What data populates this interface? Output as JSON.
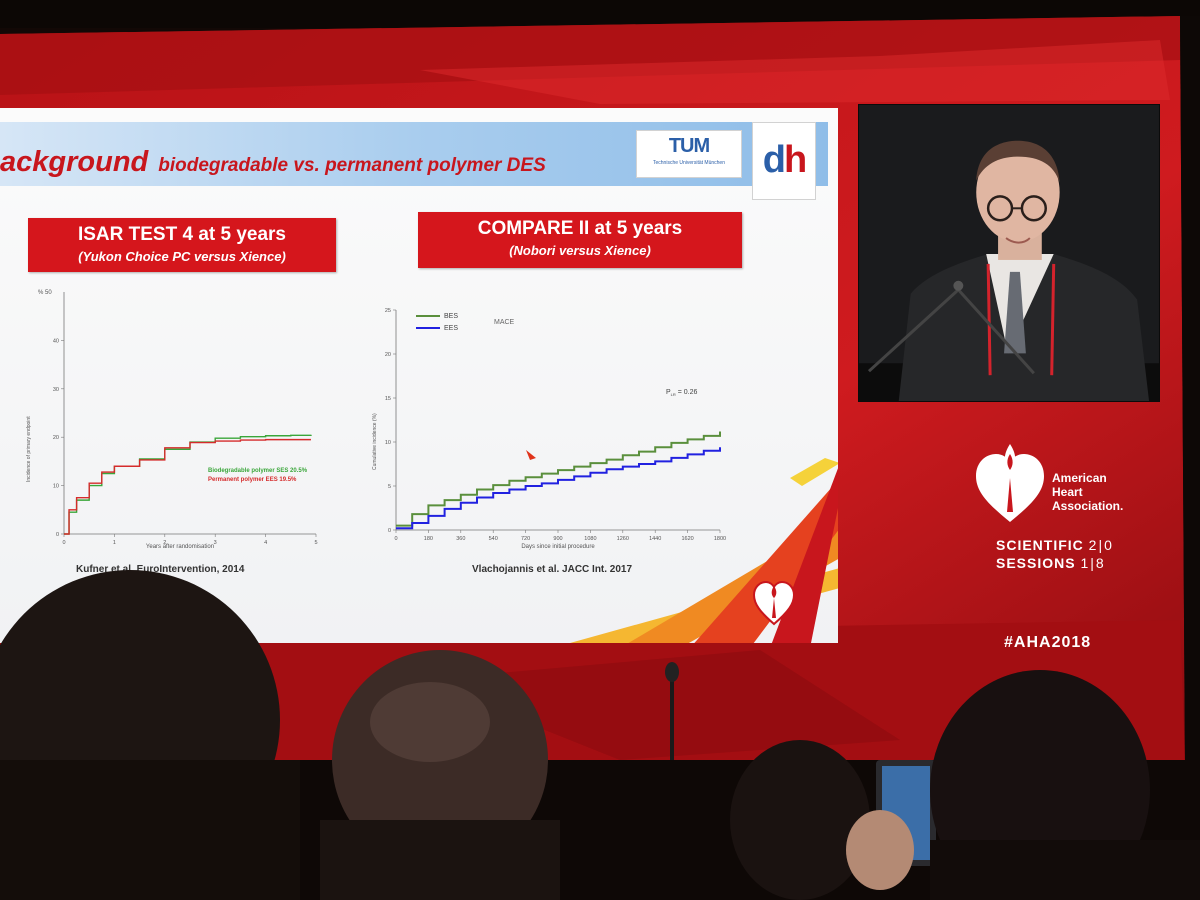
{
  "slide": {
    "title_main": "ackground",
    "title_sub": "biodegradable vs. permanent polymer DES",
    "tum_logo": {
      "mark": "TUM",
      "name": "Technische Universität München"
    },
    "dh_logo": {
      "d": "d",
      "h": "h"
    },
    "left": {
      "heading": "ISAR TEST 4 at 5 years",
      "subheading": "(Yukon Choice PC versus Xience)",
      "citation": "Kufner et al. EuroIntervention, 2014"
    },
    "right": {
      "heading": "COMPARE II at 5 years",
      "subheading": "(Nobori versus Xience)",
      "citation": "Vlachojannis et al. JACC Int. 2017"
    },
    "footer_icon": "aha-torch-heart-icon"
  },
  "chart_data": [
    {
      "type": "line",
      "title": "",
      "xlabel": "Years after randomisation",
      "ylabel": "Incidence of primary endpoint",
      "y_unit_label": "% 50",
      "xlim": [
        0,
        5
      ],
      "ylim": [
        0,
        50
      ],
      "x_ticks": [
        0,
        1,
        2,
        3,
        4,
        5
      ],
      "y_ticks": [
        0,
        10,
        20,
        30,
        40,
        50
      ],
      "series": [
        {
          "name": "Biodegradable polymer SES 20.5%",
          "color": "#3aa63a",
          "x": [
            0,
            0.1,
            0.25,
            0.5,
            0.75,
            1.0,
            1.5,
            2.0,
            2.5,
            3.0,
            3.5,
            4.0,
            4.5,
            4.9
          ],
          "y": [
            0,
            4.5,
            7,
            10,
            12.5,
            14,
            15.5,
            17.5,
            19,
            19.8,
            20.1,
            20.3,
            20.4,
            20.5
          ]
        },
        {
          "name": "Permanent polymer EES 19.5%",
          "color": "#d52b2b",
          "x": [
            0,
            0.1,
            0.25,
            0.5,
            0.75,
            1.0,
            1.5,
            2.0,
            2.5,
            3.0,
            3.5,
            4.0,
            4.5,
            4.9
          ],
          "y": [
            0,
            5,
            7.5,
            10.5,
            12.8,
            14,
            15.3,
            17.8,
            18.9,
            19.2,
            19.4,
            19.5,
            19.5,
            19.5
          ]
        }
      ]
    },
    {
      "type": "line",
      "title": "MACE",
      "xlabel": "Days since initial procedure",
      "ylabel": "Cumulative incidence (%)",
      "annotation": "P = 0.26",
      "annotation_sub": "LR",
      "xlim": [
        0,
        1800
      ],
      "ylim": [
        0,
        25
      ],
      "x_ticks": [
        0,
        180,
        360,
        540,
        720,
        900,
        1080,
        1260,
        1440,
        1620,
        1800
      ],
      "y_ticks": [
        0,
        5,
        10,
        15,
        20,
        25
      ],
      "legend_position": "top-left",
      "series": [
        {
          "name": "BES",
          "color": "#5a8f3c",
          "x": [
            0,
            90,
            180,
            270,
            360,
            450,
            540,
            630,
            720,
            810,
            900,
            990,
            1080,
            1170,
            1260,
            1350,
            1440,
            1530,
            1620,
            1710,
            1800
          ],
          "y": [
            0.5,
            1.8,
            2.8,
            3.4,
            4.0,
            4.6,
            5.1,
            5.6,
            6.0,
            6.4,
            6.8,
            7.2,
            7.6,
            8.0,
            8.5,
            8.9,
            9.4,
            9.9,
            10.3,
            10.7,
            11.2
          ]
        },
        {
          "name": "EES",
          "color": "#2121e0",
          "x": [
            0,
            90,
            180,
            270,
            360,
            450,
            540,
            630,
            720,
            810,
            900,
            990,
            1080,
            1170,
            1260,
            1350,
            1440,
            1530,
            1620,
            1710,
            1800
          ],
          "y": [
            0.2,
            0.8,
            1.6,
            2.4,
            3.1,
            3.7,
            4.2,
            4.6,
            5.0,
            5.3,
            5.7,
            6.1,
            6.5,
            6.9,
            7.2,
            7.5,
            7.8,
            8.2,
            8.6,
            9.0,
            9.4
          ]
        }
      ]
    }
  ],
  "branding": {
    "aha_name_line1": "American",
    "aha_name_line2": "Heart",
    "aha_name_line3": "Association.",
    "scientific": "SCIENTIFIC",
    "sessions": "SESSIONS",
    "year_top": "2|0",
    "year_bottom": "1|8",
    "hashtag": "#AHA2018"
  },
  "colors": {
    "backdrop_red": "#c0161a",
    "slide_red": "#d5161c",
    "slide_blue": "#a9cdee"
  }
}
